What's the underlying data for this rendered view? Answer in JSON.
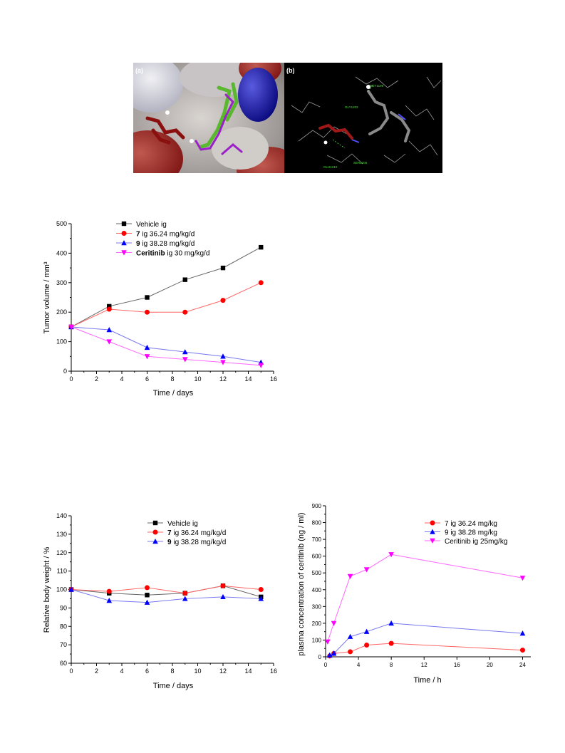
{
  "panels": {
    "a": {
      "label": "(a)"
    },
    "b": {
      "label": "(b)",
      "residues": [
        "MET1199",
        "GLY1202",
        "GLU1210",
        "SER1206"
      ]
    }
  },
  "colors": {
    "black": "#000000",
    "red": "#ff0000",
    "blue": "#0000ff",
    "magenta": "#ff00ff",
    "line_black": "#666666",
    "line_red": "#ff6666",
    "line_blue": "#7777ee",
    "line_magenta": "#ff66ff"
  },
  "chart_data": [
    {
      "type": "line",
      "xlabel": "Time / days",
      "ylabel": "Tumor volume / mm³",
      "xlim": [
        0,
        16
      ],
      "ylim": [
        0,
        500
      ],
      "xticks": [
        0,
        2,
        4,
        6,
        8,
        10,
        12,
        14,
        16
      ],
      "yticks": [
        0,
        100,
        200,
        300,
        400,
        500
      ],
      "legend": "top-left",
      "series": [
        {
          "name": "Vehicle ig",
          "bold": "",
          "rest": "Vehicle ig",
          "marker": "square",
          "color": "#000000",
          "line": "#666666",
          "x": [
            0,
            3,
            6,
            9,
            12,
            15
          ],
          "y": [
            150,
            220,
            250,
            310,
            350,
            420
          ]
        },
        {
          "name": "7 ig 36.24 mg/kg/d",
          "bold": "7",
          "rest": " ig 36.24 mg/kg/d",
          "marker": "circle",
          "color": "#ff0000",
          "line": "#ff6666",
          "x": [
            0,
            3,
            6,
            9,
            12,
            15
          ],
          "y": [
            150,
            210,
            200,
            200,
            240,
            300
          ]
        },
        {
          "name": "9 ig 38.28 mg/kg/d",
          "bold": "9",
          "rest": " ig 38.28 mg/kg/d",
          "marker": "triangle-up",
          "color": "#0000ff",
          "line": "#7777ee",
          "x": [
            0,
            3,
            6,
            9,
            12,
            15
          ],
          "y": [
            150,
            140,
            80,
            65,
            50,
            30
          ]
        },
        {
          "name": "Ceritinib ig 30 mg/kg/d",
          "bold": "Ceritinib",
          "rest": " ig 30 mg/kg/d",
          "marker": "triangle-down",
          "color": "#ff00ff",
          "line": "#ff66ff",
          "x": [
            0,
            3,
            6,
            9,
            12,
            15
          ],
          "y": [
            150,
            100,
            50,
            40,
            30,
            20
          ]
        }
      ]
    },
    {
      "type": "line",
      "xlabel": "Time / days",
      "ylabel": "Relative body weight / %",
      "xlim": [
        0,
        16
      ],
      "ylim": [
        60,
        140
      ],
      "xticks": [
        0,
        2,
        4,
        6,
        8,
        10,
        12,
        14,
        16
      ],
      "yticks": [
        60,
        70,
        80,
        90,
        100,
        110,
        120,
        130,
        140
      ],
      "legend": "top-right",
      "series": [
        {
          "name": "Vehicle ig",
          "bold": "",
          "rest": "Vehicle ig",
          "marker": "square",
          "color": "#000000",
          "line": "#666666",
          "x": [
            0,
            3,
            6,
            9,
            12,
            15
          ],
          "y": [
            100,
            98,
            97,
            98,
            102,
            96
          ]
        },
        {
          "name": "7 ig 36.24 mg/kg/d",
          "bold": "7",
          "rest": " ig 36.24 mg/kg/d",
          "marker": "circle",
          "color": "#ff0000",
          "line": "#ff6666",
          "x": [
            0,
            3,
            6,
            9,
            12,
            15
          ],
          "y": [
            100,
            99,
            101,
            98,
            102,
            100
          ]
        },
        {
          "name": "9 ig 38.28 mg/kg/d",
          "bold": "9",
          "rest": " ig 38.28 mg/kg/d",
          "marker": "triangle-up",
          "color": "#0000ff",
          "line": "#7777ee",
          "x": [
            0,
            3,
            6,
            9,
            12,
            15
          ],
          "y": [
            100,
            94,
            93,
            95,
            96,
            95
          ]
        }
      ]
    },
    {
      "type": "line",
      "xlabel": "Time / h",
      "ylabel": "plasma concentration of ceritinib (ng / ml)",
      "xlim": [
        0,
        25
      ],
      "ylim": [
        0,
        900
      ],
      "xticks": [
        0,
        4,
        8,
        12,
        16,
        20,
        24
      ],
      "yticks": [
        0,
        100,
        200,
        300,
        400,
        500,
        600,
        700,
        800,
        900
      ],
      "legend": "top-right",
      "series": [
        {
          "name": "7  ig 36.24 mg/kg",
          "bold": "",
          "rest": "7  ig 36.24 mg/kg",
          "marker": "circle",
          "color": "#ff0000",
          "line": "#ff6666",
          "x": [
            0.5,
            1,
            3,
            5,
            8,
            24
          ],
          "y": [
            5,
            20,
            30,
            70,
            80,
            40
          ]
        },
        {
          "name": "9  ig 38.28 mg/kg",
          "bold": "",
          "rest": "9  ig 38.28 mg/kg",
          "marker": "triangle-up",
          "color": "#0000ff",
          "line": "#7777ee",
          "x": [
            0.5,
            1,
            3,
            5,
            8,
            24
          ],
          "y": [
            10,
            20,
            120,
            150,
            200,
            140
          ]
        },
        {
          "name": "Ceritinib ig 25mg/kg",
          "bold": "",
          "rest": "Ceritinib ig 25mg/kg",
          "marker": "triangle-down",
          "color": "#ff00ff",
          "line": "#ff66ff",
          "x": [
            0.25,
            1,
            3,
            5,
            8,
            24
          ],
          "y": [
            90,
            200,
            480,
            520,
            610,
            470
          ]
        }
      ]
    }
  ]
}
